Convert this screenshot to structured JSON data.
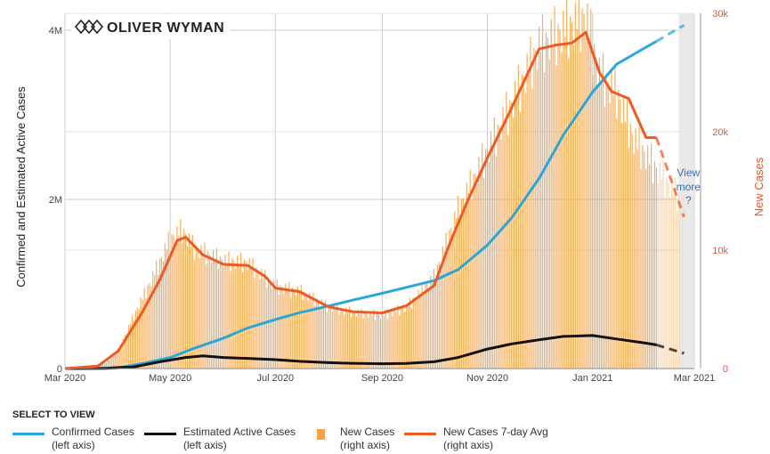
{
  "brand": {
    "name": "OLIVER WYMAN"
  },
  "chart_data": {
    "type": "bar+line",
    "title": "",
    "left_axis": {
      "label": "Confirmed and Estimated Active Cases",
      "range": [
        0,
        4200000
      ],
      "ticks": [
        0,
        2000000,
        4000000
      ],
      "tick_labels": [
        "0",
        "2M",
        "4M"
      ]
    },
    "right_axis": {
      "label": "New Cases",
      "range": [
        0,
        30000
      ],
      "ticks": [
        0,
        10000,
        20000,
        30000
      ],
      "tick_labels": [
        "0",
        "10k",
        "20k",
        "30k"
      ]
    },
    "x_axis": {
      "start": "2020-03-01",
      "end": "2021-03-01",
      "tick_labels": [
        "Mar 2020",
        "May 2020",
        "Jul 2020",
        "Sep 2020",
        "Nov 2020",
        "Jan 2021",
        "Mar 2021"
      ],
      "tick_dates": [
        "2020-03-01",
        "2020-05-01",
        "2020-07-01",
        "2020-09-01",
        "2020-11-01",
        "2021-01-01",
        "2021-03-01"
      ]
    },
    "projection_start": "2021-02-07",
    "shaded_band": {
      "from": "2021-02-20",
      "to": "2021-03-01"
    },
    "annotation": {
      "text_line1": "View",
      "text_line2": "more",
      "text_line3": "?"
    },
    "colors": {
      "confirmed": "#2aa7d6",
      "active": "#111111",
      "new_bars": "#f5a44a",
      "avg": "#ee5a24",
      "right_axis": "#e8552a",
      "grid": "#cccccc"
    },
    "series": [
      {
        "key": "confirmed",
        "name": "Confirmed Cases (left axis)",
        "axis": "left",
        "points": [
          [
            "2020-03-01",
            0
          ],
          [
            "2020-03-20",
            2000
          ],
          [
            "2020-04-01",
            10000
          ],
          [
            "2020-04-15",
            60000
          ],
          [
            "2020-05-01",
            130000
          ],
          [
            "2020-05-15",
            240000
          ],
          [
            "2020-06-01",
            360000
          ],
          [
            "2020-06-15",
            480000
          ],
          [
            "2020-07-01",
            580000
          ],
          [
            "2020-07-15",
            660000
          ],
          [
            "2020-08-01",
            740000
          ],
          [
            "2020-08-15",
            810000
          ],
          [
            "2020-09-01",
            890000
          ],
          [
            "2020-09-15",
            960000
          ],
          [
            "2020-10-01",
            1040000
          ],
          [
            "2020-10-15",
            1170000
          ],
          [
            "2020-11-01",
            1460000
          ],
          [
            "2020-11-15",
            1780000
          ],
          [
            "2020-12-01",
            2250000
          ],
          [
            "2020-12-15",
            2760000
          ],
          [
            "2021-01-01",
            3270000
          ],
          [
            "2021-01-15",
            3600000
          ],
          [
            "2021-02-01",
            3800000
          ],
          [
            "2021-02-07",
            3870000
          ],
          [
            "2021-02-23",
            4060000
          ]
        ]
      },
      {
        "key": "active",
        "name": "Estimated Active Cases (left axis)",
        "axis": "left",
        "points": [
          [
            "2020-03-01",
            0
          ],
          [
            "2020-03-25",
            3000
          ],
          [
            "2020-04-10",
            20000
          ],
          [
            "2020-04-25",
            80000
          ],
          [
            "2020-05-10",
            130000
          ],
          [
            "2020-05-20",
            150000
          ],
          [
            "2020-06-01",
            130000
          ],
          [
            "2020-06-15",
            120000
          ],
          [
            "2020-07-01",
            105000
          ],
          [
            "2020-07-15",
            85000
          ],
          [
            "2020-08-01",
            70000
          ],
          [
            "2020-08-15",
            62000
          ],
          [
            "2020-09-01",
            57000
          ],
          [
            "2020-09-15",
            60000
          ],
          [
            "2020-10-01",
            80000
          ],
          [
            "2020-10-15",
            130000
          ],
          [
            "2020-11-01",
            230000
          ],
          [
            "2020-11-15",
            290000
          ],
          [
            "2020-12-01",
            340000
          ],
          [
            "2020-12-15",
            380000
          ],
          [
            "2021-01-01",
            390000
          ],
          [
            "2021-01-15",
            350000
          ],
          [
            "2021-02-01",
            300000
          ],
          [
            "2021-02-07",
            280000
          ],
          [
            "2021-02-23",
            180000
          ]
        ]
      },
      {
        "key": "new",
        "name": "New Cases (right axis)",
        "axis": "right",
        "points": [
          [
            "2020-03-01",
            0
          ],
          [
            "2020-03-15",
            100
          ],
          [
            "2020-03-25",
            500
          ],
          [
            "2020-04-01",
            1500
          ],
          [
            "2020-04-10",
            4500
          ],
          [
            "2020-04-20",
            7500
          ],
          [
            "2020-05-01",
            11000
          ],
          [
            "2020-05-08",
            11800
          ],
          [
            "2020-05-15",
            10200
          ],
          [
            "2020-06-01",
            9200
          ],
          [
            "2020-06-15",
            9000
          ],
          [
            "2020-07-01",
            7000
          ],
          [
            "2020-07-15",
            6600
          ],
          [
            "2020-08-01",
            5200
          ],
          [
            "2020-08-15",
            4800
          ],
          [
            "2020-09-01",
            4500
          ],
          [
            "2020-09-15",
            5200
          ],
          [
            "2020-10-01",
            7800
          ],
          [
            "2020-10-15",
            13500
          ],
          [
            "2020-11-01",
            18500
          ],
          [
            "2020-11-15",
            22500
          ],
          [
            "2020-12-01",
            27500
          ],
          [
            "2020-12-15",
            28800
          ],
          [
            "2020-12-28",
            30000
          ],
          [
            "2021-01-05",
            25000
          ],
          [
            "2021-01-15",
            23500
          ],
          [
            "2021-01-25",
            19500
          ],
          [
            "2021-02-07",
            17000
          ],
          [
            "2021-02-15",
            15500
          ],
          [
            "2021-02-23",
            14000
          ]
        ]
      },
      {
        "key": "avg",
        "name": "New Cases 7-day Avg (right axis)",
        "axis": "right",
        "points": [
          [
            "2020-03-01",
            0
          ],
          [
            "2020-03-20",
            200
          ],
          [
            "2020-04-01",
            1500
          ],
          [
            "2020-04-15",
            4800
          ],
          [
            "2020-04-25",
            7500
          ],
          [
            "2020-05-05",
            10800
          ],
          [
            "2020-05-10",
            11100
          ],
          [
            "2020-05-20",
            9600
          ],
          [
            "2020-06-01",
            8800
          ],
          [
            "2020-06-15",
            8700
          ],
          [
            "2020-06-25",
            7800
          ],
          [
            "2020-07-01",
            6800
          ],
          [
            "2020-07-15",
            6500
          ],
          [
            "2020-08-01",
            5200
          ],
          [
            "2020-08-15",
            4800
          ],
          [
            "2020-09-01",
            4700
          ],
          [
            "2020-09-15",
            5300
          ],
          [
            "2020-10-01",
            7000
          ],
          [
            "2020-10-10",
            10500
          ],
          [
            "2020-10-20",
            14000
          ],
          [
            "2020-11-01",
            17800
          ],
          [
            "2020-11-15",
            22000
          ],
          [
            "2020-12-01",
            27000
          ],
          [
            "2020-12-10",
            27300
          ],
          [
            "2020-12-20",
            27500
          ],
          [
            "2020-12-28",
            28400
          ],
          [
            "2021-01-05",
            25000
          ],
          [
            "2021-01-12",
            23400
          ],
          [
            "2021-01-22",
            22800
          ],
          [
            "2021-02-01",
            19500
          ],
          [
            "2021-02-07",
            19500
          ],
          [
            "2021-02-23",
            12800
          ]
        ]
      }
    ]
  },
  "legend": {
    "title": "SELECT TO VIEW",
    "items": [
      {
        "key": "confirmed",
        "line1": "Confirmed Cases",
        "line2": "(left axis)"
      },
      {
        "key": "active",
        "line1": "Estimated Active Cases",
        "line2": "(left axis)"
      },
      {
        "key": "new",
        "line1": "New Cases",
        "line2": "(right axis)"
      },
      {
        "key": "avg",
        "line1": "New Cases 7-day Avg",
        "line2": "(right axis)"
      }
    ]
  }
}
